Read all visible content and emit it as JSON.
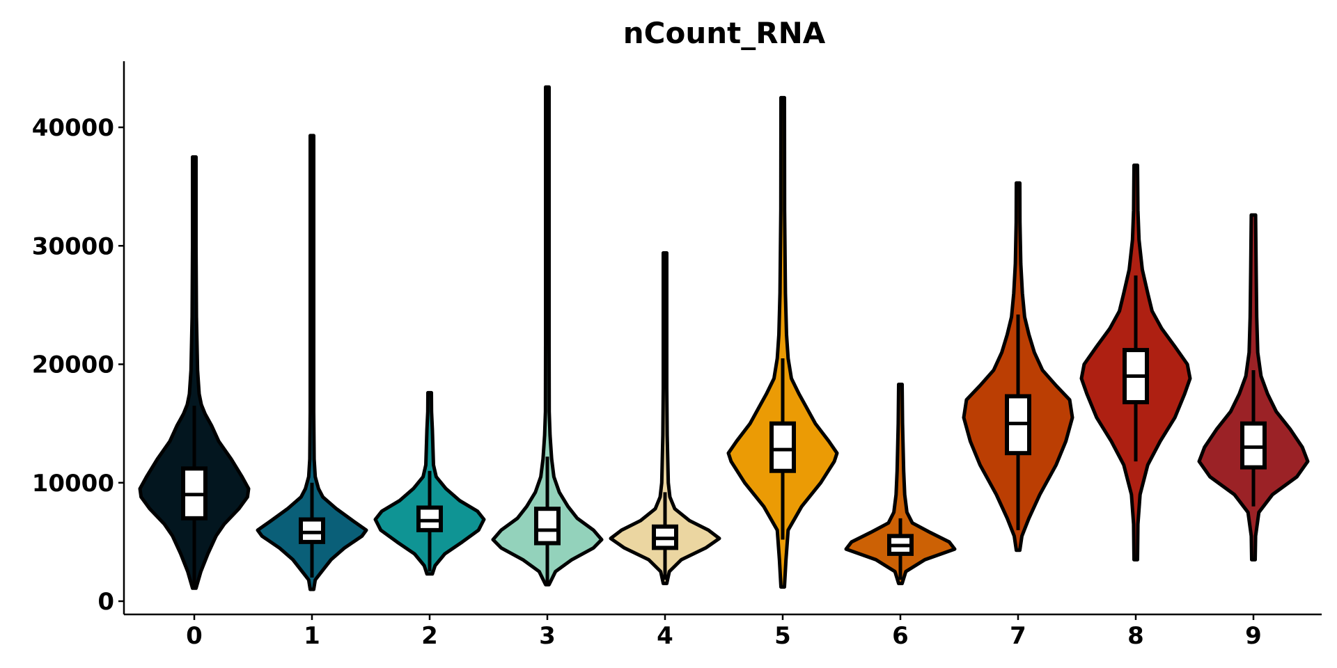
{
  "chart_data": {
    "type": "violin",
    "title": "nCount_RNA",
    "xlabel": "",
    "ylabel": "",
    "ylim": [
      -1000,
      45500
    ],
    "y_ticks": [
      0,
      10000,
      20000,
      30000,
      40000
    ],
    "y_tick_labels": [
      "0",
      "10000",
      "20000",
      "30000",
      "40000"
    ],
    "legend": "none",
    "grid": false,
    "groups": [
      {
        "label": "0",
        "color": "#03161f",
        "min": 1100,
        "q1": 7000,
        "median": 9000,
        "q3": 11200,
        "whisker_low": 1100,
        "whisker_high": 16500,
        "max": 37500,
        "profile": [
          [
            1100,
            0.03
          ],
          [
            2500,
            0.12
          ],
          [
            4000,
            0.25
          ],
          [
            5500,
            0.4
          ],
          [
            6500,
            0.55
          ],
          [
            7800,
            0.82
          ],
          [
            8800,
            0.98
          ],
          [
            9500,
            1.0
          ],
          [
            10500,
            0.88
          ],
          [
            12000,
            0.68
          ],
          [
            13500,
            0.45
          ],
          [
            14800,
            0.32
          ],
          [
            15800,
            0.2
          ],
          [
            16600,
            0.13
          ],
          [
            17500,
            0.09
          ],
          [
            19500,
            0.06
          ],
          [
            24000,
            0.04
          ],
          [
            30000,
            0.025
          ],
          [
            37500,
            0.02
          ]
        ]
      },
      {
        "label": "1",
        "color": "#0a5f78",
        "min": 1000,
        "q1": 5000,
        "median": 5800,
        "q3": 6900,
        "whisker_low": 2000,
        "whisker_high": 10000,
        "max": 39300,
        "profile": [
          [
            1000,
            0.03
          ],
          [
            1800,
            0.06
          ],
          [
            2500,
            0.18
          ],
          [
            3500,
            0.35
          ],
          [
            4500,
            0.6
          ],
          [
            5500,
            0.92
          ],
          [
            6000,
            1.0
          ],
          [
            6800,
            0.75
          ],
          [
            7800,
            0.45
          ],
          [
            8800,
            0.2
          ],
          [
            9500,
            0.12
          ],
          [
            10500,
            0.06
          ],
          [
            12000,
            0.04
          ],
          [
            16000,
            0.03
          ],
          [
            25000,
            0.025
          ],
          [
            39300,
            0.02
          ]
        ]
      },
      {
        "label": "2",
        "color": "#0f9494",
        "min": 2300,
        "q1": 6000,
        "median": 6800,
        "q3": 7900,
        "whisker_low": 2500,
        "whisker_high": 11000,
        "max": 17600,
        "profile": [
          [
            2300,
            0.05
          ],
          [
            3000,
            0.1
          ],
          [
            4000,
            0.28
          ],
          [
            5000,
            0.6
          ],
          [
            6000,
            0.9
          ],
          [
            6900,
            1.0
          ],
          [
            7600,
            0.88
          ],
          [
            8500,
            0.55
          ],
          [
            9500,
            0.3
          ],
          [
            10500,
            0.12
          ],
          [
            11500,
            0.07
          ],
          [
            13000,
            0.06
          ],
          [
            14500,
            0.05
          ],
          [
            16000,
            0.035
          ],
          [
            17600,
            0.025
          ]
        ]
      },
      {
        "label": "3",
        "color": "#93d2bb",
        "min": 1400,
        "q1": 4900,
        "median": 6000,
        "q3": 7800,
        "whisker_low": 1500,
        "whisker_high": 12200,
        "max": 43400,
        "profile": [
          [
            1400,
            0.03
          ],
          [
            2500,
            0.15
          ],
          [
            3500,
            0.45
          ],
          [
            4500,
            0.85
          ],
          [
            5200,
            1.0
          ],
          [
            6000,
            0.85
          ],
          [
            7000,
            0.55
          ],
          [
            8000,
            0.38
          ],
          [
            9200,
            0.22
          ],
          [
            10500,
            0.12
          ],
          [
            12000,
            0.08
          ],
          [
            14000,
            0.05
          ],
          [
            16000,
            0.035
          ],
          [
            22000,
            0.03
          ],
          [
            30000,
            0.025
          ],
          [
            43400,
            0.02
          ]
        ]
      },
      {
        "label": "4",
        "color": "#ebd6a1",
        "min": 1500,
        "q1": 4500,
        "median": 5300,
        "q3": 6300,
        "whisker_low": 1800,
        "whisker_high": 9200,
        "max": 29400,
        "profile": [
          [
            1500,
            0.03
          ],
          [
            2500,
            0.08
          ],
          [
            3500,
            0.3
          ],
          [
            4500,
            0.75
          ],
          [
            5300,
            1.0
          ],
          [
            6000,
            0.8
          ],
          [
            6800,
            0.45
          ],
          [
            7800,
            0.18
          ],
          [
            8800,
            0.09
          ],
          [
            10000,
            0.06
          ],
          [
            12000,
            0.05
          ],
          [
            14000,
            0.04
          ],
          [
            18000,
            0.03
          ],
          [
            24000,
            0.025
          ],
          [
            29400,
            0.02
          ]
        ]
      },
      {
        "label": "5",
        "color": "#eb9b05",
        "min": 1200,
        "q1": 11000,
        "median": 12800,
        "q3": 15000,
        "whisker_low": 5200,
        "whisker_high": 20500,
        "max": 42500,
        "profile": [
          [
            1200,
            0.03
          ],
          [
            3500,
            0.06
          ],
          [
            6000,
            0.1
          ],
          [
            8000,
            0.35
          ],
          [
            10000,
            0.7
          ],
          [
            11800,
            0.95
          ],
          [
            12500,
            1.0
          ],
          [
            13500,
            0.85
          ],
          [
            15000,
            0.6
          ],
          [
            16500,
            0.42
          ],
          [
            17500,
            0.3
          ],
          [
            18800,
            0.16
          ],
          [
            20500,
            0.1
          ],
          [
            22500,
            0.07
          ],
          [
            26000,
            0.05
          ],
          [
            33000,
            0.035
          ],
          [
            42500,
            0.02
          ]
        ]
      },
      {
        "label": "6",
        "color": "#cc6105",
        "min": 1500,
        "q1": 4000,
        "median": 4700,
        "q3": 5500,
        "whisker_low": 1800,
        "whisker_high": 7000,
        "max": 18300,
        "profile": [
          [
            1500,
            0.03
          ],
          [
            2500,
            0.1
          ],
          [
            3500,
            0.45
          ],
          [
            4400,
            1.0
          ],
          [
            5000,
            0.9
          ],
          [
            5800,
            0.55
          ],
          [
            6600,
            0.22
          ],
          [
            7500,
            0.12
          ],
          [
            9000,
            0.08
          ],
          [
            11000,
            0.06
          ],
          [
            13000,
            0.05
          ],
          [
            15000,
            0.04
          ],
          [
            18300,
            0.025
          ]
        ]
      },
      {
        "label": "7",
        "color": "#bb3e03",
        "min": 4300,
        "q1": 12500,
        "median": 15000,
        "q3": 17300,
        "whisker_low": 6000,
        "whisker_high": 24200,
        "max": 35300,
        "profile": [
          [
            4300,
            0.03
          ],
          [
            5500,
            0.07
          ],
          [
            7000,
            0.2
          ],
          [
            9000,
            0.4
          ],
          [
            11500,
            0.7
          ],
          [
            13500,
            0.88
          ],
          [
            15500,
            1.0
          ],
          [
            17000,
            0.95
          ],
          [
            18200,
            0.7
          ],
          [
            19500,
            0.45
          ],
          [
            21000,
            0.3
          ],
          [
            22500,
            0.2
          ],
          [
            24000,
            0.12
          ],
          [
            26000,
            0.08
          ],
          [
            28500,
            0.05
          ],
          [
            32000,
            0.035
          ],
          [
            35300,
            0.03
          ]
        ]
      },
      {
        "label": "8",
        "color": "#ae2012",
        "min": 3500,
        "q1": 16800,
        "median": 19000,
        "q3": 21200,
        "whisker_low": 11800,
        "whisker_high": 27500,
        "max": 36800,
        "profile": [
          [
            3500,
            0.03
          ],
          [
            6500,
            0.04
          ],
          [
            9000,
            0.08
          ],
          [
            11500,
            0.22
          ],
          [
            13500,
            0.45
          ],
          [
            15500,
            0.72
          ],
          [
            17500,
            0.9
          ],
          [
            18800,
            1.0
          ],
          [
            20000,
            0.95
          ],
          [
            21500,
            0.72
          ],
          [
            23000,
            0.48
          ],
          [
            24500,
            0.3
          ],
          [
            26000,
            0.22
          ],
          [
            28000,
            0.12
          ],
          [
            30500,
            0.06
          ],
          [
            33000,
            0.04
          ],
          [
            36800,
            0.03
          ]
        ]
      },
      {
        "label": "9",
        "color": "#9b2226",
        "min": 3500,
        "q1": 11300,
        "median": 13000,
        "q3": 15000,
        "whisker_low": 8000,
        "whisker_high": 19500,
        "max": 32600,
        "profile": [
          [
            3500,
            0.03
          ],
          [
            5500,
            0.04
          ],
          [
            7500,
            0.1
          ],
          [
            9000,
            0.35
          ],
          [
            10500,
            0.8
          ],
          [
            11800,
            1.0
          ],
          [
            13000,
            0.9
          ],
          [
            14500,
            0.68
          ],
          [
            16000,
            0.42
          ],
          [
            17500,
            0.26
          ],
          [
            19000,
            0.14
          ],
          [
            21000,
            0.08
          ],
          [
            24000,
            0.06
          ],
          [
            28000,
            0.05
          ],
          [
            32600,
            0.04
          ]
        ]
      }
    ]
  }
}
